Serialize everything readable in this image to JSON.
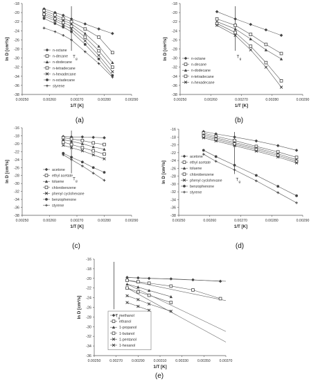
{
  "figure": {
    "ylabel": "ln D [cm²/s]",
    "xlabel": "1/T [K]"
  },
  "chart_data": [
    {
      "panel": "(a)",
      "type": "line",
      "xlim": [
        0.0025,
        0.0029
      ],
      "ylim": [
        -38,
        -18
      ],
      "xticks": [
        "0.00250",
        "0.00260",
        "0.00270",
        "0.00280",
        "0.00290"
      ],
      "yticks": [
        "-18",
        "-20",
        "-22",
        "-24",
        "-26",
        "-28",
        "-30",
        "-32",
        "-34",
        "-36",
        "-38"
      ],
      "tg_x": 0.00268,
      "tg_label": "T",
      "tg_sub": "g",
      "legend_placement": "bottom-left",
      "series": [
        {
          "name": "n-octane",
          "marker": "diamond",
          "x": [
            0.00258,
            0.00262,
            0.00265,
            0.00268,
            0.00273,
            0.00278,
            0.00283
          ],
          "y": [
            -19.2,
            -20.0,
            -20.6,
            -21.4,
            -22.5,
            -23.6,
            -24.6
          ]
        },
        {
          "name": "n-decane",
          "marker": "square-open",
          "x": [
            0.00258,
            0.00262,
            0.00265,
            0.00268,
            0.00273,
            0.00278,
            0.00283
          ],
          "y": [
            -19.6,
            -20.5,
            -21.3,
            -22.0,
            -23.6,
            -25.4,
            -28.8
          ]
        },
        {
          "name": "n-dodecane",
          "marker": "triangle",
          "x": [
            0.00258,
            0.00262,
            0.00265,
            0.00268,
            0.00273,
            0.00278,
            0.00283
          ],
          "y": [
            -20.0,
            -21.0,
            -21.7,
            -22.5,
            -24.6,
            -27.4,
            -31.0
          ]
        },
        {
          "name": "n-tetradecane",
          "marker": "square-open",
          "x": [
            0.00258,
            0.00262,
            0.00265,
            0.00268,
            0.00273,
            0.00278,
            0.00283
          ],
          "y": [
            -20.4,
            -21.4,
            -22.2,
            -23.0,
            -25.4,
            -28.4,
            -32.0
          ]
        },
        {
          "name": "n-hexadecane",
          "marker": "x",
          "x": [
            0.00258,
            0.00262,
            0.00265,
            0.00268,
            0.00273,
            0.00278,
            0.00283
          ],
          "y": [
            -20.8,
            -21.8,
            -22.7,
            -23.6,
            -26.2,
            -29.4,
            -33.0
          ]
        },
        {
          "name": "n-octadecane",
          "marker": "circle",
          "x": [
            0.00258,
            0.00262,
            0.00265,
            0.00268,
            0.00273,
            0.00278,
            0.00283
          ],
          "y": [
            -21.3,
            -22.4,
            -23.2,
            -24.2,
            -27.0,
            -30.2,
            -33.8
          ]
        },
        {
          "name": "styrene",
          "marker": "plus",
          "x": [
            0.00258,
            0.00262,
            0.00265,
            0.00268,
            0.00273,
            0.00278,
            0.00283
          ],
          "y": [
            -23.4,
            -24.2,
            -25.0,
            -26.0,
            -28.6,
            -31.2,
            -34.2
          ]
        }
      ]
    },
    {
      "panel": "(b)",
      "type": "line",
      "xlim": [
        0.0025,
        0.0029
      ],
      "ylim": [
        -38,
        -18
      ],
      "xticks": [
        "0.00250",
        "0.00260",
        "0.00270",
        "0.00280",
        "0.00290"
      ],
      "yticks": [
        "-18",
        "-20",
        "-22",
        "-24",
        "-26",
        "-28",
        "-30",
        "-32",
        "-34",
        "-36",
        "-38"
      ],
      "tg_x": 0.00268,
      "tg_label": "T",
      "tg_sub": "g",
      "legend_placement": "left",
      "series": [
        {
          "name": "n-octane",
          "marker": "diamond",
          "x": [
            0.00262,
            0.00268,
            0.00273,
            0.00278,
            0.00283
          ],
          "y": [
            -19.8,
            -21.4,
            -22.6,
            -23.8,
            -25.0
          ]
        },
        {
          "name": "n-decane",
          "marker": "square-open",
          "x": [
            0.00262,
            0.00268,
            0.00273,
            0.00278,
            0.00283
          ],
          "y": [
            -21.4,
            -22.8,
            -24.8,
            -27.0,
            -29.0
          ]
        },
        {
          "name": "n-dodecane",
          "marker": "triangle",
          "x": [
            0.00262,
            0.00268,
            0.00273,
            0.00278,
            0.00283
          ],
          "y": [
            -22.0,
            -23.6,
            -25.8,
            -28.2,
            -30.2
          ]
        },
        {
          "name": "n-tetradecane",
          "marker": "square-open",
          "x": [
            0.00262,
            0.00268,
            0.00273,
            0.00278,
            0.00283
          ],
          "y": [
            -22.4,
            -24.4,
            -27.4,
            -31.0,
            -35.0
          ]
        },
        {
          "name": "n-hexadecane",
          "marker": "x",
          "x": [
            0.00262,
            0.00268,
            0.00273,
            0.00278,
            0.00283
          ],
          "y": [
            -22.8,
            -25.0,
            -28.2,
            -32.0,
            -36.4
          ]
        }
      ]
    },
    {
      "panel": "(c)",
      "type": "line",
      "xlim": [
        0.0025,
        0.0029
      ],
      "ylim": [
        -38,
        -16
      ],
      "xticks": [
        "0.00250",
        "0.00260",
        "0.00270",
        "0.00280",
        "0.00290"
      ],
      "yticks": [
        "-16",
        "-18",
        "-20",
        "-22",
        "-24",
        "-26",
        "-28",
        "-30",
        "-32",
        "-34",
        "-36",
        "-38"
      ],
      "tg_x": 0.00268,
      "tg_label": "T",
      "tg_sub": "g",
      "legend_placement": "bottom-left",
      "series": [
        {
          "name": "acetone",
          "marker": "diamond",
          "x": [
            0.00265,
            0.00268,
            0.00272,
            0.00276,
            0.0028
          ],
          "y": [
            -18.2,
            -18.3,
            -18.3,
            -18.4,
            -18.5
          ]
        },
        {
          "name": "ethyl acetate",
          "marker": "square-open",
          "x": [
            0.00265,
            0.00268,
            0.00272,
            0.00276,
            0.0028
          ],
          "y": [
            -18.5,
            -18.8,
            -19.2,
            -19.8,
            -20.2
          ]
        },
        {
          "name": "toluene",
          "marker": "triangle",
          "x": [
            0.00265,
            0.00268,
            0.00272,
            0.00276,
            0.0028
          ],
          "y": [
            -19.0,
            -19.4,
            -20.0,
            -20.8,
            -21.4
          ]
        },
        {
          "name": "chlorobenzene",
          "marker": "square-open",
          "x": [
            0.00265,
            0.00268,
            0.00272,
            0.00276,
            0.0028
          ],
          "y": [
            -19.6,
            -20.2,
            -21.0,
            -21.8,
            -22.6
          ]
        },
        {
          "name": "phenyl cyclohexane",
          "marker": "x",
          "x": [
            0.00265,
            0.00268,
            0.00272,
            0.00276,
            0.0028
          ],
          "y": [
            -20.4,
            -21.0,
            -21.8,
            -22.8,
            -23.8
          ]
        },
        {
          "name": "benzophenone",
          "marker": "circle",
          "x": [
            0.00265,
            0.00268,
            0.00272,
            0.00276,
            0.0028
          ],
          "y": [
            -22.4,
            -23.4,
            -24.6,
            -26.0,
            -27.2
          ]
        },
        {
          "name": "styrene",
          "marker": "plus",
          "x": [
            0.00265,
            0.00268,
            0.00272,
            0.00276,
            0.0028
          ],
          "y": [
            -22.8,
            -24.0,
            -25.6,
            -27.4,
            -29.2
          ]
        }
      ]
    },
    {
      "panel": "(d)",
      "type": "line",
      "xlim": [
        0.0025,
        0.0029
      ],
      "ylim": [
        -38,
        -16
      ],
      "xticks": [
        "0.00250",
        "0.00260",
        "0.00270",
        "0.00280",
        "0.00290"
      ],
      "yticks": [
        "-16",
        "-18",
        "-20",
        "-22",
        "-24",
        "-26",
        "-28",
        "-30",
        "-32",
        "-34",
        "-36",
        "-38"
      ],
      "tg_x": 0.00268,
      "tg_label": "T",
      "tg_sub": "g",
      "legend_placement": "left",
      "series": [
        {
          "name": "acetone",
          "marker": "diamond",
          "x": [
            0.00258,
            0.00262,
            0.00268,
            0.00275,
            0.00282,
            0.00288
          ],
          "y": [
            -16.6,
            -17.2,
            -18.0,
            -19.0,
            -20.2,
            -21.4
          ]
        },
        {
          "name": "ethyl acetate",
          "marker": "square-open",
          "x": [
            0.00258,
            0.00262,
            0.00268,
            0.00275,
            0.00282,
            0.00288
          ],
          "y": [
            -17.0,
            -17.8,
            -18.9,
            -20.4,
            -21.8,
            -23.2
          ]
        },
        {
          "name": "toluene",
          "marker": "triangle",
          "x": [
            0.00258,
            0.00262,
            0.00268,
            0.00275,
            0.00282,
            0.00288
          ],
          "y": [
            -17.4,
            -18.2,
            -19.4,
            -20.8,
            -22.3,
            -23.8
          ]
        },
        {
          "name": "chlorobenzene",
          "marker": "square-open",
          "x": [
            0.00258,
            0.00262,
            0.00268,
            0.00275,
            0.00282,
            0.00288
          ],
          "y": [
            -17.8,
            -18.6,
            -19.8,
            -21.2,
            -22.7,
            -24.2
          ]
        },
        {
          "name": "phenyl cyclohexane",
          "marker": "x",
          "x": [
            0.00258,
            0.00262,
            0.00268,
            0.00275,
            0.00282,
            0.00288
          ],
          "y": [
            -18.2,
            -19.0,
            -20.2,
            -21.6,
            -23.1,
            -24.6
          ]
        },
        {
          "name": "benzophenone",
          "marker": "circle",
          "x": [
            0.00258,
            0.00262,
            0.00268,
            0.00275,
            0.00282,
            0.00288
          ],
          "y": [
            -21.4,
            -23.0,
            -25.2,
            -27.8,
            -30.6,
            -33.0
          ]
        },
        {
          "name": "styrene",
          "marker": "plus",
          "x": [
            0.00258,
            0.00262,
            0.00268,
            0.00275,
            0.00282,
            0.00288
          ],
          "y": [
            -22.4,
            -24.2,
            -26.4,
            -29.2,
            -32.2,
            -34.8
          ]
        }
      ]
    },
    {
      "panel": "(e)",
      "type": "line",
      "xlim": [
        0.0025,
        0.0037
      ],
      "ylim": [
        -36,
        -16
      ],
      "xticks": [
        "0.00250",
        "0.00270",
        "0.00290",
        "0.00310",
        "0.00330",
        "0.00350",
        "0.00370"
      ],
      "yticks": [
        "-16",
        "-18",
        "-20",
        "-22",
        "-24",
        "-26",
        "-28",
        "-30",
        "-32",
        "-34",
        "-36"
      ],
      "tg_x": 0.00268,
      "tg_label": "T",
      "tg_sub": "g",
      "legend_placement": "bottom-left",
      "series": [
        {
          "name": "methanol",
          "marker": "diamond",
          "x": [
            0.0028,
            0.0029,
            0.003,
            0.0032,
            0.0034,
            0.00365
          ],
          "y": [
            -19.8,
            -19.9,
            -20.0,
            -20.1,
            -20.3,
            -20.6
          ]
        },
        {
          "name": "ethanol",
          "marker": "square-open",
          "x": [
            0.0028,
            0.0029,
            0.003,
            0.0032,
            0.0034,
            0.00365
          ],
          "y": [
            -20.4,
            -20.7,
            -21.0,
            -21.6,
            -22.4,
            -24.2
          ]
        },
        {
          "name": "1-propanol",
          "marker": "triangle",
          "x": [
            0.0028,
            0.0029,
            0.003,
            0.0032
          ],
          "y": [
            -21.2,
            -21.8,
            -22.5,
            -23.8
          ]
        },
        {
          "name": "1-butanol",
          "marker": "square-open",
          "x": [
            0.0028,
            0.0029,
            0.003,
            0.0032
          ],
          "y": [
            -22.0,
            -22.8,
            -23.5,
            -25.0
          ]
        },
        {
          "name": "1-pentanol",
          "marker": "x",
          "x": [
            0.0028,
            0.0029,
            0.003,
            0.0032
          ],
          "y": [
            -23.6,
            -24.4,
            -25.3,
            -26.8
          ]
        },
        {
          "name": "1-hexanol",
          "marker": "x",
          "x": [
            0.0028,
            0.0029,
            0.003
          ],
          "y": [
            -25.0,
            -25.8,
            -26.6
          ]
        }
      ],
      "fit_lines": [
        {
          "x": [
            0.0028,
            0.0037
          ],
          "y": [
            -19.8,
            -20.6
          ]
        },
        {
          "x": [
            0.0028,
            0.0037
          ],
          "y": [
            -20.4,
            -24.6
          ]
        },
        {
          "x": [
            0.0028,
            0.0037
          ],
          "y": [
            -21.2,
            -31.0
          ]
        },
        {
          "x": [
            0.0028,
            0.0037
          ],
          "y": [
            -22.0,
            -33.2
          ]
        }
      ]
    }
  ]
}
